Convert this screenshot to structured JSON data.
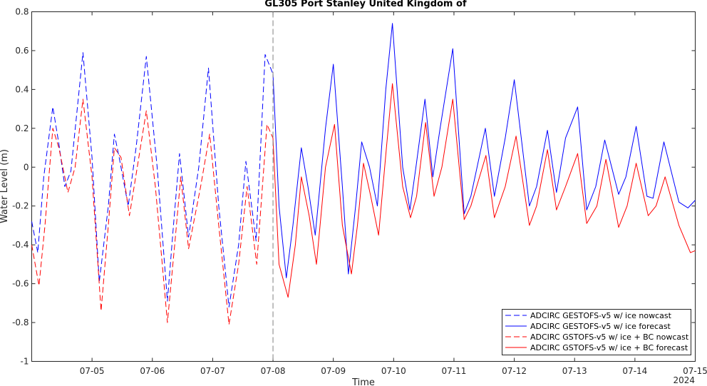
{
  "chart_data": {
    "type": "line",
    "title": "GL305 Port Stanley United Kingdom of",
    "xlabel": "Time",
    "ylabel": "Water Level (m)",
    "year_label": "2024",
    "xlim": [
      4.0,
      15.0
    ],
    "ylim": [
      -1.0,
      0.8
    ],
    "x_ticks": [
      5,
      6,
      7,
      8,
      9,
      10,
      11,
      12,
      13,
      14,
      15
    ],
    "x_tick_labels": [
      "07-05",
      "07-06",
      "07-07",
      "07-08",
      "07-09",
      "07-10",
      "07-11",
      "07-12",
      "07-13",
      "07-14",
      "07-15"
    ],
    "y_ticks": [
      -1.0,
      -0.8,
      -0.6,
      -0.4,
      -0.2,
      0,
      0.2,
      0.4,
      0.6,
      0.8
    ],
    "y_tick_labels": [
      "-1",
      "-0.8",
      "-0.6",
      "-0.4",
      "-0.2",
      "0",
      "0.2",
      "0.4",
      "0.6",
      "0.8"
    ],
    "nowcast_forecast_divider_x": 8.0,
    "grid": false,
    "legend_position": "bottom-right",
    "series": [
      {
        "name": "ADCIRC GESTOFS-v5 w/ ice nowcast",
        "color": "#0000ff",
        "dashed": true,
        "x": [
          4.0,
          4.1,
          4.2,
          4.35,
          4.45,
          4.55,
          4.65,
          4.85,
          5.0,
          5.12,
          5.27,
          5.37,
          5.45,
          5.6,
          5.73,
          5.9,
          6.08,
          6.25,
          6.35,
          6.45,
          6.6,
          6.77,
          6.93,
          7.1,
          7.27,
          7.43,
          7.55,
          7.72,
          7.87,
          8.0
        ],
        "y": [
          -0.28,
          -0.44,
          -0.05,
          0.31,
          0.12,
          -0.1,
          -0.02,
          0.59,
          0.05,
          -0.59,
          -0.2,
          0.17,
          0.05,
          -0.2,
          0.1,
          0.57,
          0.0,
          -0.69,
          -0.3,
          0.07,
          -0.36,
          0.0,
          0.51,
          -0.2,
          -0.72,
          -0.4,
          0.03,
          -0.38,
          0.58,
          0.48
        ]
      },
      {
        "name": "ADCIRC GESTOFS-v5 w/ ice forecast",
        "color": "#0000ff",
        "dashed": false,
        "x": [
          8.0,
          8.1,
          8.22,
          8.33,
          8.47,
          8.58,
          8.7,
          8.87,
          9.0,
          9.15,
          9.25,
          9.37,
          9.47,
          9.6,
          9.73,
          9.87,
          9.98,
          10.15,
          10.27,
          10.37,
          10.52,
          10.65,
          10.77,
          10.98,
          11.17,
          11.28,
          11.52,
          11.67,
          11.85,
          12.0,
          12.25,
          12.37,
          12.55,
          12.7,
          12.85,
          13.05,
          13.2,
          13.35,
          13.5,
          13.73,
          13.85,
          14.02,
          14.2,
          14.3,
          14.48,
          14.73,
          14.88,
          15.0
        ],
        "y": [
          0.48,
          -0.2,
          -0.57,
          -0.3,
          0.1,
          -0.1,
          -0.35,
          0.2,
          0.53,
          -0.1,
          -0.55,
          -0.2,
          0.13,
          0.0,
          -0.2,
          0.4,
          0.74,
          0.0,
          -0.22,
          0.0,
          0.35,
          -0.05,
          0.2,
          0.61,
          -0.24,
          -0.15,
          0.2,
          -0.15,
          0.15,
          0.45,
          -0.2,
          -0.1,
          0.19,
          -0.13,
          0.15,
          0.31,
          -0.22,
          -0.1,
          0.14,
          -0.14,
          -0.05,
          0.21,
          -0.15,
          -0.16,
          0.13,
          -0.18,
          -0.21,
          -0.17
        ]
      },
      {
        "name": "ADCIRC GSTOFS-v5 w/ ice + BC nowcast",
        "color": "#ff0000",
        "dashed": true,
        "x": [
          4.0,
          4.12,
          4.22,
          4.35,
          4.45,
          4.6,
          4.72,
          4.85,
          5.0,
          5.15,
          5.27,
          5.37,
          5.48,
          5.62,
          5.75,
          5.9,
          6.05,
          6.25,
          6.37,
          6.47,
          6.6,
          6.8,
          6.95,
          7.1,
          7.27,
          7.43,
          7.57,
          7.73,
          7.9,
          8.0
        ],
        "y": [
          -0.4,
          -0.61,
          -0.3,
          0.2,
          0.1,
          -0.13,
          0.0,
          0.35,
          -0.05,
          -0.74,
          -0.3,
          0.1,
          0.05,
          -0.25,
          0.0,
          0.29,
          -0.1,
          -0.8,
          -0.4,
          -0.05,
          -0.42,
          -0.1,
          0.17,
          -0.3,
          -0.81,
          -0.5,
          -0.1,
          -0.5,
          0.22,
          0.15
        ]
      },
      {
        "name": "ADCIRC GSTOFS-v5 w/ ice + BC forecast",
        "color": "#ff0000",
        "dashed": false,
        "x": [
          8.0,
          8.1,
          8.25,
          8.37,
          8.47,
          8.6,
          8.72,
          8.87,
          9.02,
          9.15,
          9.3,
          9.4,
          9.5,
          9.62,
          9.75,
          9.88,
          9.98,
          10.15,
          10.28,
          10.38,
          10.53,
          10.67,
          10.8,
          10.98,
          11.17,
          11.28,
          11.53,
          11.67,
          11.85,
          12.03,
          12.25,
          12.37,
          12.55,
          12.7,
          12.85,
          13.05,
          13.2,
          13.37,
          13.52,
          13.73,
          13.87,
          14.02,
          14.22,
          14.35,
          14.5,
          14.73,
          14.92,
          15.0
        ],
        "y": [
          0.15,
          -0.5,
          -0.67,
          -0.4,
          -0.05,
          -0.25,
          -0.5,
          0.0,
          0.22,
          -0.3,
          -0.55,
          -0.3,
          0.02,
          -0.15,
          -0.35,
          0.1,
          0.43,
          -0.1,
          -0.26,
          -0.15,
          0.23,
          -0.15,
          0.0,
          0.35,
          -0.27,
          -0.2,
          0.06,
          -0.26,
          -0.1,
          0.16,
          -0.3,
          -0.2,
          0.09,
          -0.22,
          -0.1,
          0.07,
          -0.29,
          -0.2,
          0.04,
          -0.31,
          -0.2,
          0.02,
          -0.25,
          -0.2,
          -0.05,
          -0.3,
          -0.44,
          -0.43
        ]
      }
    ]
  }
}
